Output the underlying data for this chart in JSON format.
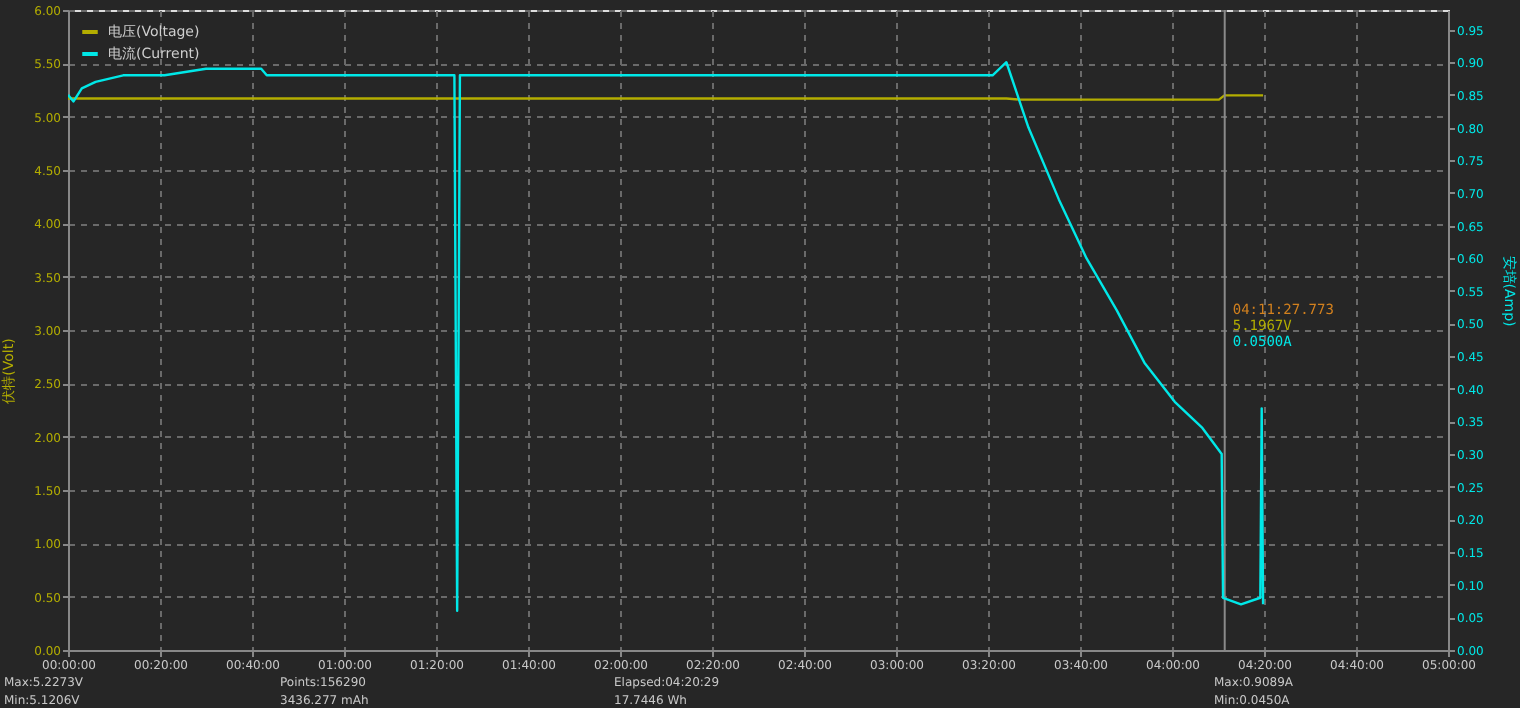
{
  "chart_data": {
    "type": "line",
    "ylabel": "伏特(Volt)",
    "y2label": "安培(Amp)",
    "xlim": [
      0,
      5
    ],
    "xticks": [
      {
        "value": 0,
        "label": "00:00:00"
      },
      {
        "value": 0.3333,
        "label": "00:20:00"
      },
      {
        "value": 0.6667,
        "label": "00:40:00"
      },
      {
        "value": 1,
        "label": "01:00:00"
      },
      {
        "value": 1.3333,
        "label": "01:20:00"
      },
      {
        "value": 1.6667,
        "label": "01:40:00"
      },
      {
        "value": 2,
        "label": "02:00:00"
      },
      {
        "value": 2.3333,
        "label": "02:20:00"
      },
      {
        "value": 2.6667,
        "label": "02:40:00"
      },
      {
        "value": 3,
        "label": "03:00:00"
      },
      {
        "value": 3.3333,
        "label": "03:20:00"
      },
      {
        "value": 3.6667,
        "label": "03:40:00"
      },
      {
        "value": 4,
        "label": "04:00:00"
      },
      {
        "value": 4.3333,
        "label": "04:20:00"
      },
      {
        "value": 4.6667,
        "label": "04:40:00"
      },
      {
        "value": 5,
        "label": "05:00:00"
      }
    ],
    "ylim": [
      0,
      6
    ],
    "yticks": [
      {
        "value": 0,
        "label": "0.00"
      },
      {
        "value": 0.5,
        "label": "0.50"
      },
      {
        "value": 1,
        "label": "1.00"
      },
      {
        "value": 1.5,
        "label": "1.50"
      },
      {
        "value": 2,
        "label": "2.00"
      },
      {
        "value": 2.5,
        "label": "2.50"
      },
      {
        "value": 3,
        "label": "3.00"
      },
      {
        "value": 3.5,
        "label": "3.50"
      },
      {
        "value": 4,
        "label": "4.00"
      },
      {
        "value": 4.5,
        "label": "4.50"
      },
      {
        "value": 5,
        "label": "5.00"
      },
      {
        "value": 5.5,
        "label": "5.50"
      },
      {
        "value": 6,
        "label": "6.00"
      }
    ],
    "y2lim": [
      0,
      0.98
    ],
    "y2ticks": [
      {
        "value": 0,
        "label": "0.00"
      },
      {
        "value": 0.05,
        "label": "0.05"
      },
      {
        "value": 0.1,
        "label": "0.10"
      },
      {
        "value": 0.15,
        "label": "0.15"
      },
      {
        "value": 0.2,
        "label": "0.20"
      },
      {
        "value": 0.25,
        "label": "0.25"
      },
      {
        "value": 0.3,
        "label": "0.30"
      },
      {
        "value": 0.35,
        "label": "0.35"
      },
      {
        "value": 0.4,
        "label": "0.40"
      },
      {
        "value": 0.45,
        "label": "0.45"
      },
      {
        "value": 0.5,
        "label": "0.50"
      },
      {
        "value": 0.55,
        "label": "0.55"
      },
      {
        "value": 0.6,
        "label": "0.60"
      },
      {
        "value": 0.65,
        "label": "0.65"
      },
      {
        "value": 0.7,
        "label": "0.70"
      },
      {
        "value": 0.75,
        "label": "0.75"
      },
      {
        "value": 0.8,
        "label": "0.80"
      },
      {
        "value": 0.85,
        "label": "0.85"
      },
      {
        "value": 0.9,
        "label": "0.90"
      },
      {
        "value": 0.95,
        "label": "0.95"
      }
    ],
    "grid": true,
    "legend": "top left",
    "line_style": "solid",
    "series": [
      {
        "name": "电压(Voltage)",
        "color": "#b3ad00",
        "x": [
          0,
          3.4,
          3.45,
          4.17,
          4.19,
          4.33
        ],
        "values": [
          5.17,
          5.17,
          5.16,
          5.16,
          5.2,
          5.2
        ]
      },
      {
        "name": "电流(Current)",
        "color": "#00e8e8",
        "axis": "y2",
        "x": [
          0,
          0.02,
          0.05,
          0.1,
          0.2,
          0.35,
          0.5,
          0.7,
          0.72,
          1.0,
          1.4,
          1.41,
          1.42,
          2.0,
          2.5,
          3.0,
          3.35,
          3.4,
          3.48,
          3.59,
          3.69,
          3.8,
          3.9,
          4.01,
          4.11,
          4.18,
          4.185,
          4.25,
          4.32,
          4.325,
          4.33
        ],
        "values": [
          0.85,
          0.84,
          0.86,
          0.87,
          0.88,
          0.88,
          0.89,
          0.89,
          0.88,
          0.88,
          0.88,
          0.06,
          0.88,
          0.88,
          0.88,
          0.88,
          0.88,
          0.9,
          0.8,
          0.69,
          0.6,
          0.52,
          0.44,
          0.38,
          0.34,
          0.3,
          0.08,
          0.07,
          0.08,
          0.37,
          0.07
        ]
      }
    ],
    "ref_lines": [
      {
        "axis": "x",
        "value": 4.191,
        "color": "#8a8a8a"
      }
    ],
    "annotations": [
      "04:11:27.773",
      "5.1967V",
      "0.0500A",
      "Max:5.2273V",
      "Min:5.1206V",
      "Points:156290",
      "3436.277 mAh",
      "Elapsed:04:20:29",
      "17.7446 Wh",
      "Max:0.9089A",
      "Min:0.0450A"
    ]
  }
}
